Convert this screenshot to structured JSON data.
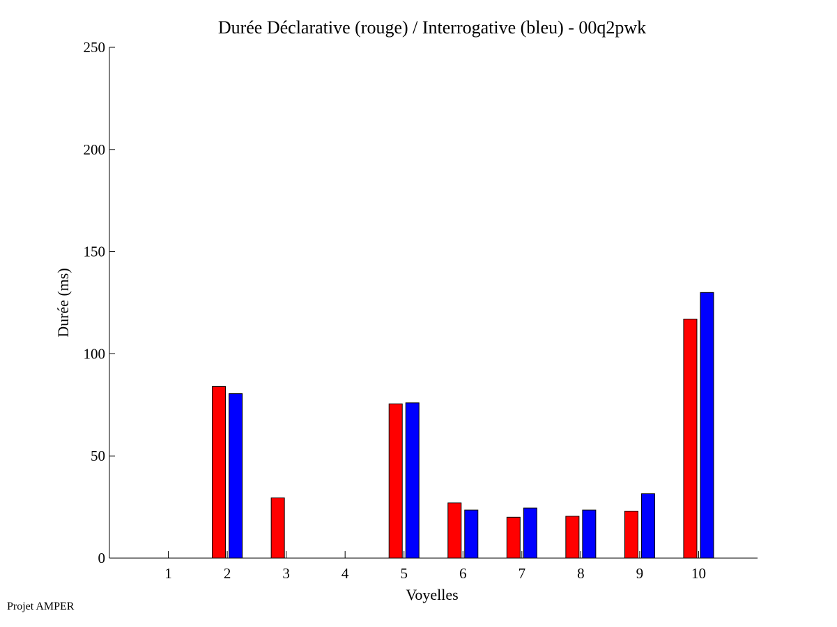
{
  "footer_text": "Projet AMPER",
  "chart_data": {
    "type": "bar",
    "title": "Durée Déclarative (rouge) / Interrogative (bleu) - 00q2pwk",
    "xlabel": "Voyelles",
    "ylabel": "Durée (ms)",
    "categories": [
      "1",
      "2",
      "3",
      "4",
      "5",
      "6",
      "7",
      "8",
      "9",
      "10"
    ],
    "ylim": [
      0,
      250
    ],
    "yticks": [
      "0",
      "50",
      "100",
      "150",
      "200",
      "250"
    ],
    "grid": false,
    "series": [
      {
        "color": "#ff0000",
        "values": [
          0,
          84,
          29.5,
          0,
          75.5,
          27,
          20,
          20.5,
          23,
          117
        ]
      },
      {
        "color": "#0000ff",
        "values": [
          0,
          80.5,
          0,
          0,
          76,
          23.5,
          24.5,
          23.5,
          31.5,
          130
        ]
      }
    ]
  }
}
